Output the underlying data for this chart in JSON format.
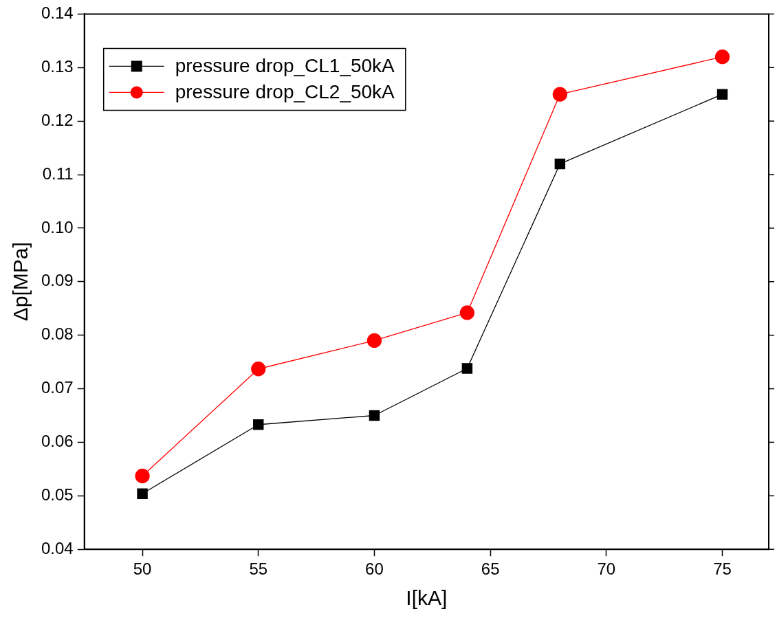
{
  "chart_data": {
    "type": "line",
    "xlabel": "I[kA]",
    "ylabel": "Δp[MPa]",
    "x": [
      50,
      55,
      60,
      64,
      68,
      75
    ],
    "series": [
      {
        "name": "pressure drop_CL1_50kA",
        "color": "#000000",
        "marker": "square",
        "values": [
          0.0504,
          0.0633,
          0.065,
          0.0738,
          0.112,
          0.125
        ]
      },
      {
        "name": "pressure drop_CL2_50kA",
        "color": "#ff0000",
        "marker": "circle",
        "values": [
          0.0537,
          0.0737,
          0.079,
          0.0842,
          0.125,
          0.132
        ]
      }
    ],
    "xlim": [
      47.5,
      77
    ],
    "xticks": [
      50,
      55,
      60,
      65,
      70,
      75
    ],
    "ylim": [
      0.04,
      0.14
    ],
    "yticks": [
      0.04,
      0.05,
      0.06,
      0.07,
      0.08,
      0.09,
      {
        "value": 0.1,
        "label": "0.10"
      },
      0.11,
      0.12,
      0.13,
      0.14
    ],
    "grid": false,
    "legend": "top left",
    "line_style": "solid"
  }
}
